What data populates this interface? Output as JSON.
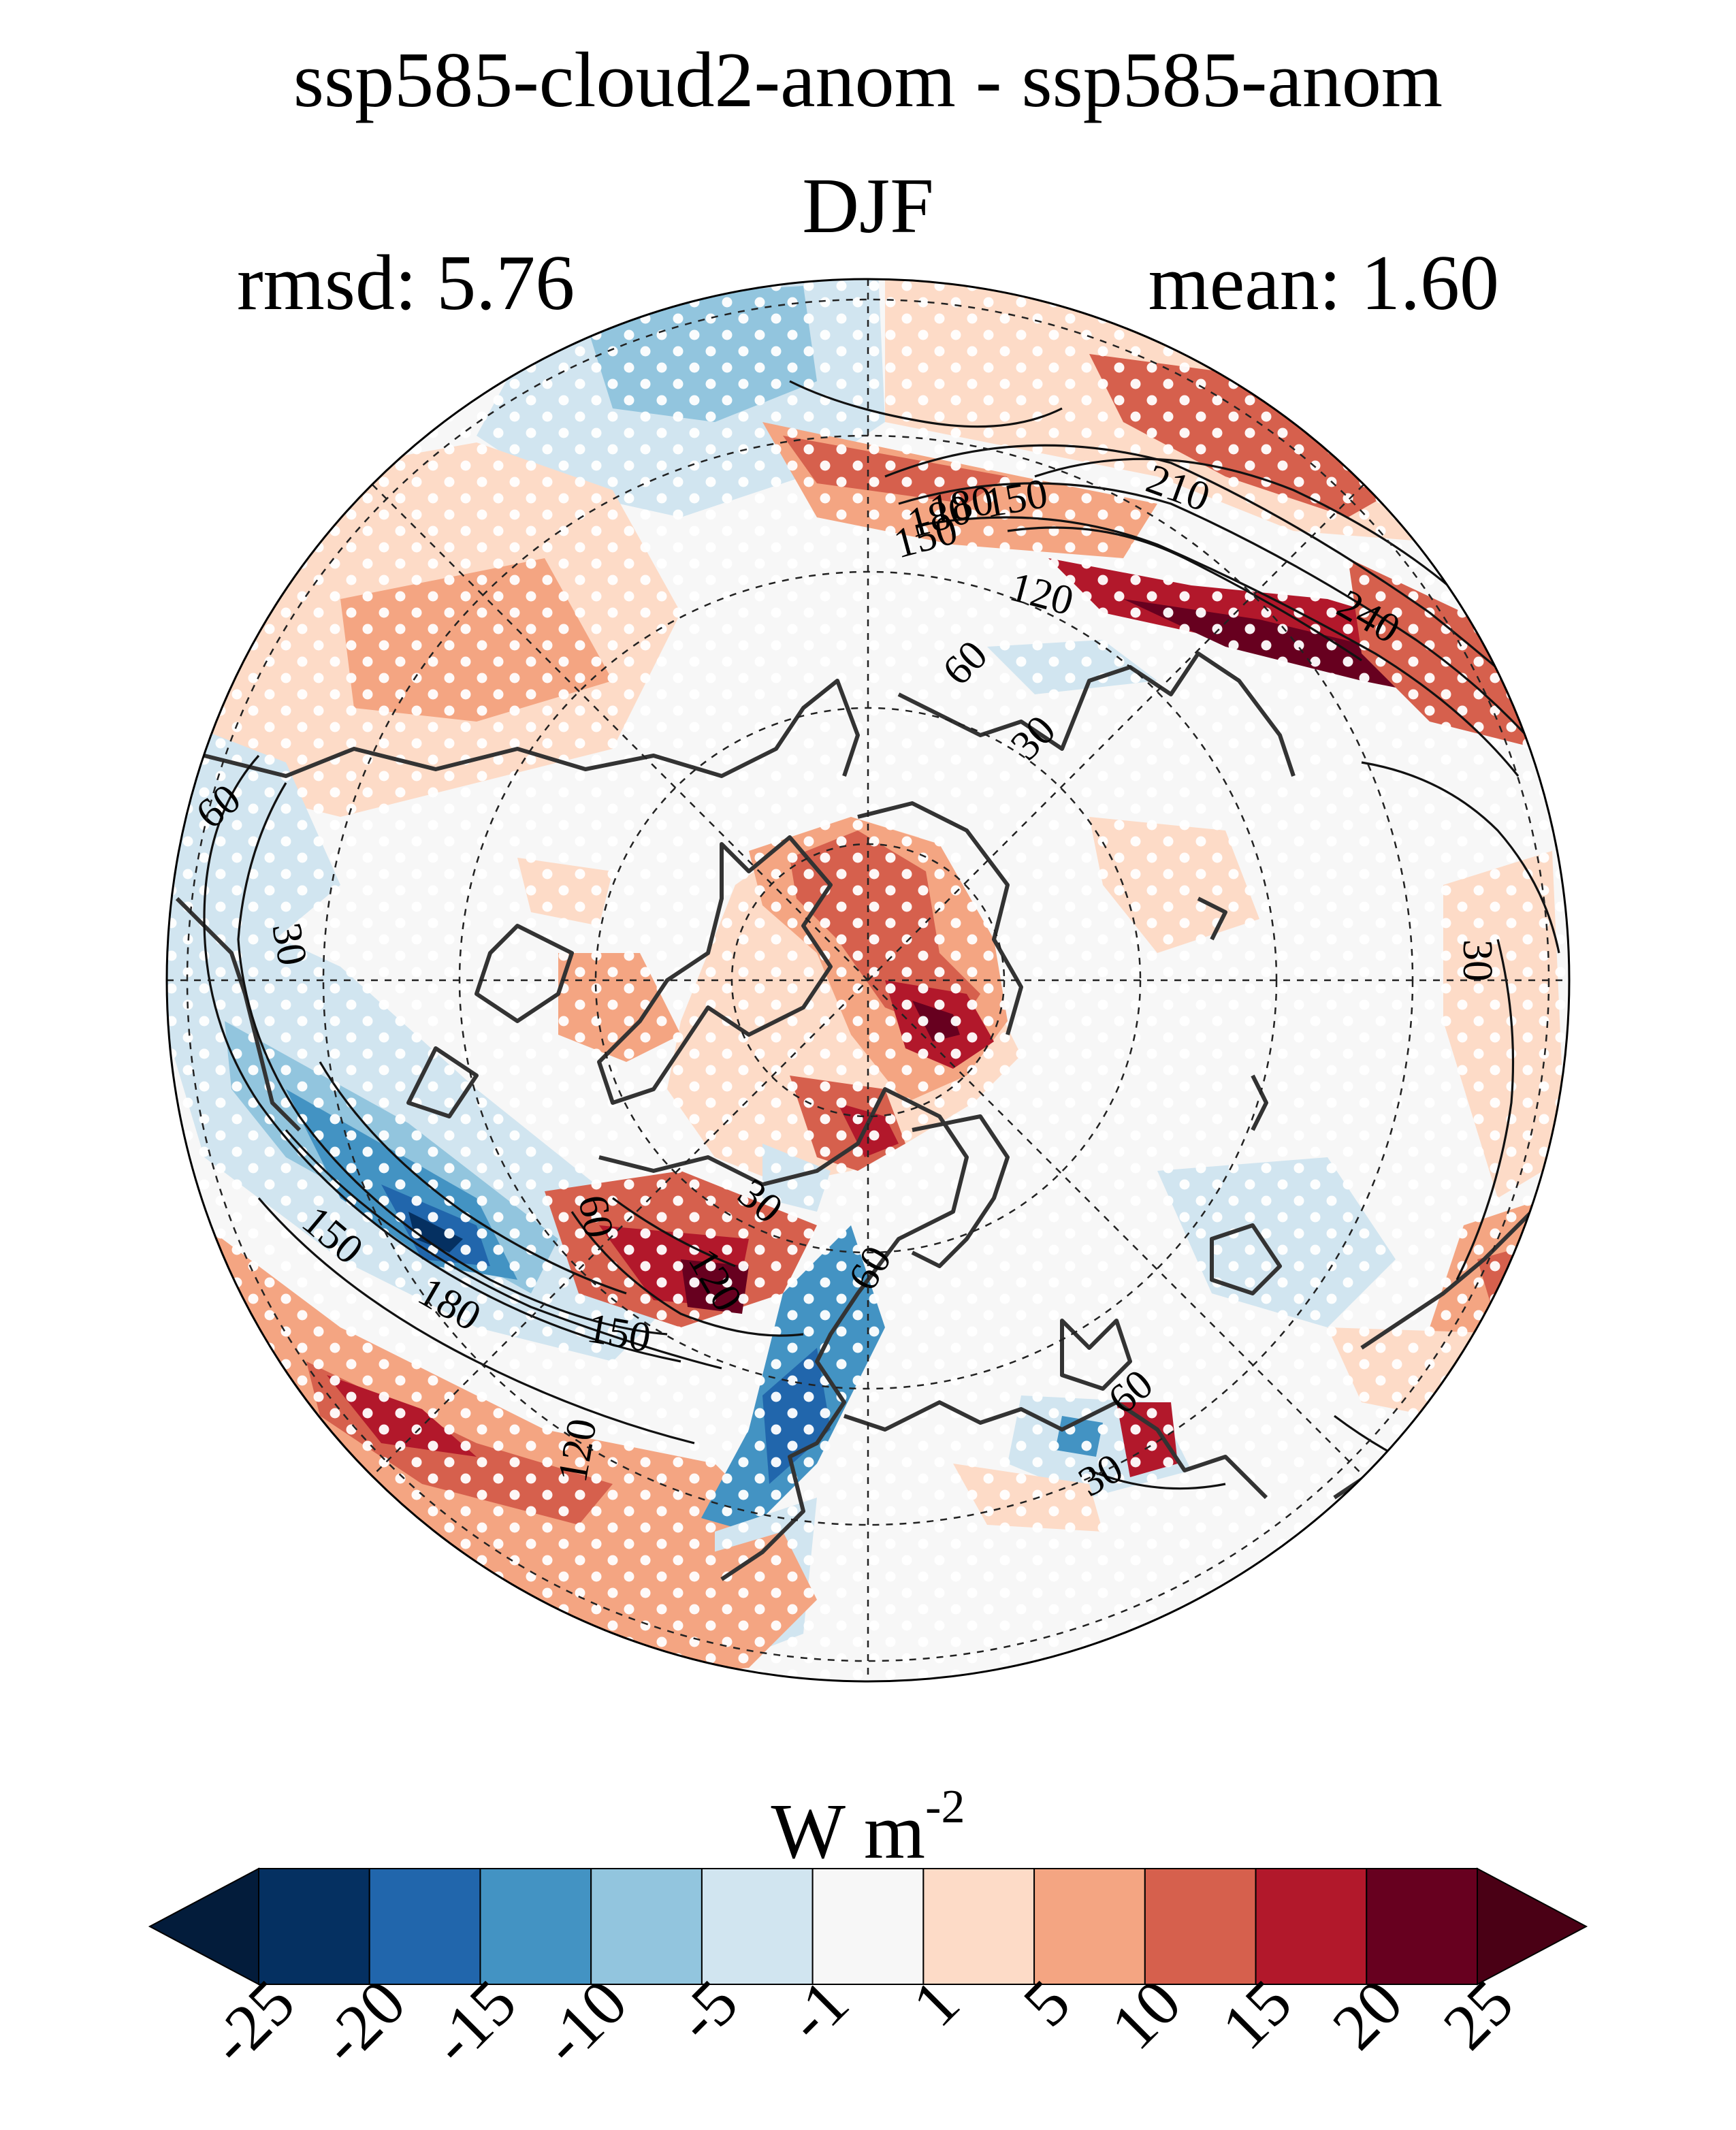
{
  "figure": {
    "title": "ssp585-cloud2-anom - ssp585-anom",
    "season": "DJF",
    "rmsd_label": "rmsd: 5.76",
    "mean_label": "mean: 1.60"
  },
  "map": {
    "projection": "north-polar-stereographic",
    "contour_labels": [
      "210",
      "180",
      "150",
      "120",
      "240",
      "60",
      "30",
      "60",
      "30",
      "30",
      "60",
      "150",
      "180",
      "150",
      "120",
      "120",
      "60",
      "30",
      "60",
      "30",
      "150",
      "180"
    ],
    "stippling": "white dots mark significant grid points",
    "colors": {
      "land_outline": "#333333",
      "contour": "#111111",
      "gridline": "#222222"
    }
  },
  "colorbar": {
    "units_text": "W m",
    "units_exp": "-2",
    "tick_labels": [
      "-25",
      "-20",
      "-15",
      "-10",
      "-5",
      "-1",
      "1",
      "5",
      "10",
      "15",
      "20",
      "25"
    ],
    "bin_colors": [
      "#053061",
      "#2166ac",
      "#4393c3",
      "#92c5de",
      "#d1e5f0",
      "#f7f7f7",
      "#fddbc7",
      "#f4a582",
      "#d6604d",
      "#b2182b",
      "#67001f"
    ],
    "under_color": "#031c3b",
    "over_color": "#4a0015"
  }
}
